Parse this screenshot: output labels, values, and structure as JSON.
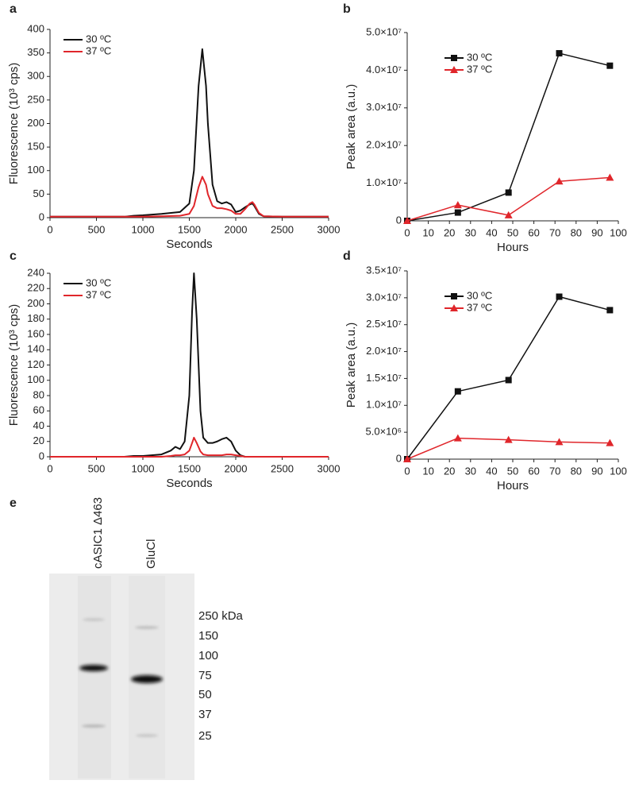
{
  "chart_data": [
    {
      "type": "line",
      "panel": "a",
      "x_label": "Seconds",
      "y_label": "Fluorescence (10³ cps)",
      "legend": "upper left",
      "x": [
        0,
        800,
        900,
        1000,
        1200,
        1400,
        1500,
        1550,
        1600,
        1640,
        1680,
        1700,
        1750,
        1800,
        1850,
        1900,
        1950,
        2000,
        2050,
        2100,
        2150,
        2180,
        2200,
        2250,
        2300,
        2500,
        3000
      ],
      "series": [
        {
          "name": "30 ºC",
          "color": "#111111",
          "values": [
            2,
            2,
            4,
            5,
            8,
            12,
            30,
            100,
            280,
            358,
            280,
            200,
            70,
            35,
            30,
            33,
            28,
            12,
            15,
            22,
            28,
            30,
            25,
            8,
            3,
            2,
            2
          ]
        },
        {
          "name": "37 ºC",
          "color": "#e0262b",
          "values": [
            2,
            2,
            2,
            2,
            3,
            4,
            8,
            25,
            65,
            87,
            70,
            50,
            25,
            20,
            20,
            18,
            15,
            8,
            8,
            18,
            30,
            33,
            28,
            10,
            3,
            2,
            2
          ]
        }
      ],
      "xlim": [
        0,
        3000
      ],
      "xticks": [
        0,
        500,
        1000,
        1500,
        2000,
        2500,
        3000
      ],
      "ylim": [
        0,
        400
      ],
      "yticks": [
        0,
        50,
        100,
        150,
        200,
        250,
        300,
        350,
        400
      ]
    },
    {
      "type": "line",
      "panel": "b",
      "x_label": "Hours",
      "y_label": "Peak area (a.u.)",
      "legend": "upper center",
      "x": [
        0,
        24,
        48,
        72,
        96
      ],
      "series": [
        {
          "name": "30 ºC",
          "color": "#111111",
          "marker": "square",
          "values": [
            0,
            2200000,
            7500000,
            44500000,
            41200000
          ]
        },
        {
          "name": "37 ºC",
          "color": "#e0262b",
          "marker": "triangle",
          "values": [
            0,
            4200000,
            1500000,
            10500000,
            11500000
          ]
        }
      ],
      "xlim": [
        0,
        100
      ],
      "xticks": [
        0,
        10,
        20,
        30,
        40,
        50,
        60,
        70,
        80,
        90,
        100
      ],
      "ylim": [
        0,
        50000000
      ],
      "yticks": [
        0,
        {
          "value": 10000000,
          "label": "1.0×10⁷"
        },
        {
          "value": 20000000,
          "label": "2.0×10⁷"
        },
        {
          "value": 30000000,
          "label": "3.0×10⁷"
        },
        {
          "value": 40000000,
          "label": "4.0×10⁷"
        },
        {
          "value": 50000000,
          "label": "5.0×10⁷"
        }
      ]
    },
    {
      "type": "line",
      "panel": "c",
      "x_label": "Seconds",
      "y_label": "Fluorescence (10³ cps)",
      "legend": "upper left",
      "x": [
        0,
        800,
        900,
        1000,
        1200,
        1300,
        1350,
        1400,
        1450,
        1500,
        1530,
        1550,
        1580,
        1620,
        1650,
        1700,
        1750,
        1800,
        1850,
        1900,
        1950,
        2000,
        2050,
        2100,
        2500,
        3000
      ],
      "series": [
        {
          "name": "30 ºC",
          "color": "#111111",
          "values": [
            0,
            0,
            1,
            1,
            3,
            8,
            13,
            10,
            20,
            80,
            190,
            240,
            180,
            60,
            25,
            18,
            18,
            20,
            23,
            25,
            20,
            8,
            2,
            0,
            0,
            0
          ]
        },
        {
          "name": "37 ºC",
          "color": "#e0262b",
          "values": [
            0,
            0,
            0,
            0,
            0,
            1,
            2,
            2,
            3,
            8,
            18,
            25,
            18,
            7,
            3,
            2,
            2,
            2,
            2,
            3,
            3,
            2,
            1,
            0,
            0,
            0
          ]
        }
      ],
      "xlim": [
        0,
        3000
      ],
      "xticks": [
        0,
        500,
        1000,
        1500,
        2000,
        2500,
        3000
      ],
      "ylim": [
        0,
        240
      ],
      "yticks": [
        0,
        20,
        40,
        60,
        80,
        100,
        120,
        140,
        160,
        180,
        200,
        220,
        240
      ]
    },
    {
      "type": "line",
      "panel": "d",
      "x_label": "Hours",
      "y_label": "Peak area (a.u.)",
      "legend": "upper center",
      "x": [
        0,
        24,
        48,
        72,
        96
      ],
      "series": [
        {
          "name": "30 ºC",
          "color": "#111111",
          "marker": "square",
          "values": [
            0,
            12600000,
            14700000,
            30200000,
            27700000
          ]
        },
        {
          "name": "37 ºC",
          "color": "#e0262b",
          "marker": "triangle",
          "values": [
            0,
            3900000,
            3600000,
            3200000,
            3000000
          ]
        }
      ],
      "xlim": [
        0,
        100
      ],
      "xticks": [
        0,
        10,
        20,
        30,
        40,
        50,
        60,
        70,
        80,
        90,
        100
      ],
      "ylim": [
        0,
        35000000
      ],
      "yticks": [
        0,
        {
          "value": 5000000,
          "label": "5.0×10⁶"
        },
        {
          "value": 10000000,
          "label": "1.0×10⁷"
        },
        {
          "value": 15000000,
          "label": "1.5×10⁷"
        },
        {
          "value": 20000000,
          "label": "2.0×10⁷"
        },
        {
          "value": 25000000,
          "label": "2.5×10⁷"
        },
        {
          "value": 30000000,
          "label": "3.0×10⁷"
        },
        {
          "value": 35000000,
          "label": "3.5×10⁷"
        }
      ]
    }
  ],
  "gel": {
    "panel": "e",
    "lanes": [
      "cASIC1 Δ463",
      "GluCl"
    ],
    "markers": [
      "250 kDa",
      "150",
      "100",
      "75",
      "50",
      "37",
      "25"
    ]
  }
}
